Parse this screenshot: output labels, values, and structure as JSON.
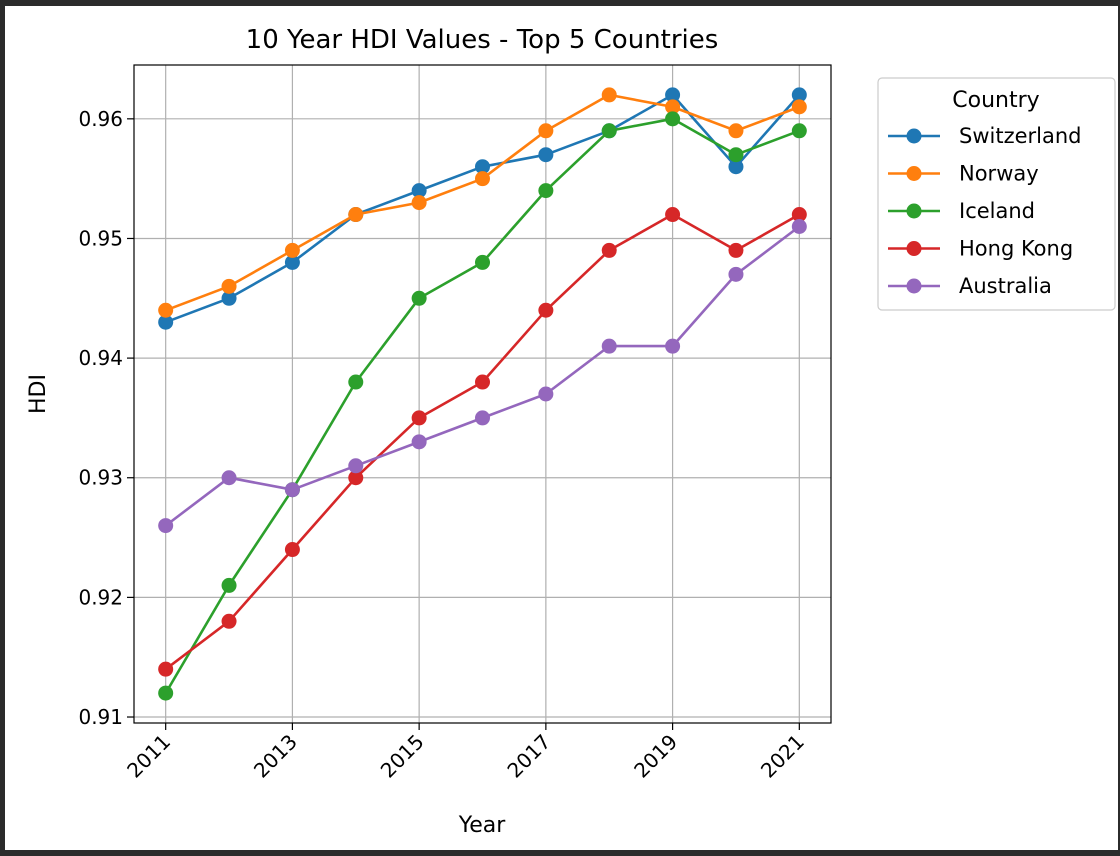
{
  "colors": {
    "Switzerland": "#1f77b4",
    "Norway": "#ff7f0e",
    "Iceland": "#2ca02c",
    "Hong Kong": "#d62728",
    "Australia": "#9467bd",
    "grid": "#b0b0b0"
  },
  "chart_data": {
    "type": "line",
    "title": "10 Year HDI Values - Top 5 Countries",
    "xlabel": "Year",
    "ylabel": "HDI",
    "x": [
      2011,
      2012,
      2013,
      2014,
      2015,
      2016,
      2017,
      2018,
      2019,
      2020,
      2021
    ],
    "xticks": [
      "2011",
      "2013",
      "2015",
      "2017",
      "2019",
      "2021"
    ],
    "yticks": [
      "0.91",
      "0.92",
      "0.93",
      "0.94",
      "0.95",
      "0.96"
    ],
    "xlim": [
      2010.5,
      2021.5
    ],
    "ylim": [
      0.9095,
      0.9645
    ],
    "grid": true,
    "legend_title": "Country",
    "legend_position": "outside-top-right",
    "series": [
      {
        "name": "Switzerland",
        "values": [
          0.943,
          0.945,
          0.948,
          0.952,
          0.954,
          0.956,
          0.957,
          0.959,
          0.962,
          0.956,
          0.962
        ]
      },
      {
        "name": "Norway",
        "values": [
          0.944,
          0.946,
          0.949,
          0.952,
          0.953,
          0.955,
          0.959,
          0.962,
          0.961,
          0.959,
          0.961
        ]
      },
      {
        "name": "Iceland",
        "values": [
          0.912,
          0.921,
          0.929,
          0.938,
          0.945,
          0.948,
          0.954,
          0.959,
          0.96,
          0.957,
          0.959
        ]
      },
      {
        "name": "Hong Kong",
        "values": [
          0.914,
          0.918,
          0.924,
          0.93,
          0.935,
          0.938,
          0.944,
          0.949,
          0.952,
          0.949,
          0.952
        ]
      },
      {
        "name": "Australia",
        "values": [
          0.926,
          0.93,
          0.929,
          0.931,
          0.933,
          0.935,
          0.937,
          0.941,
          0.941,
          0.947,
          0.951
        ]
      }
    ]
  }
}
